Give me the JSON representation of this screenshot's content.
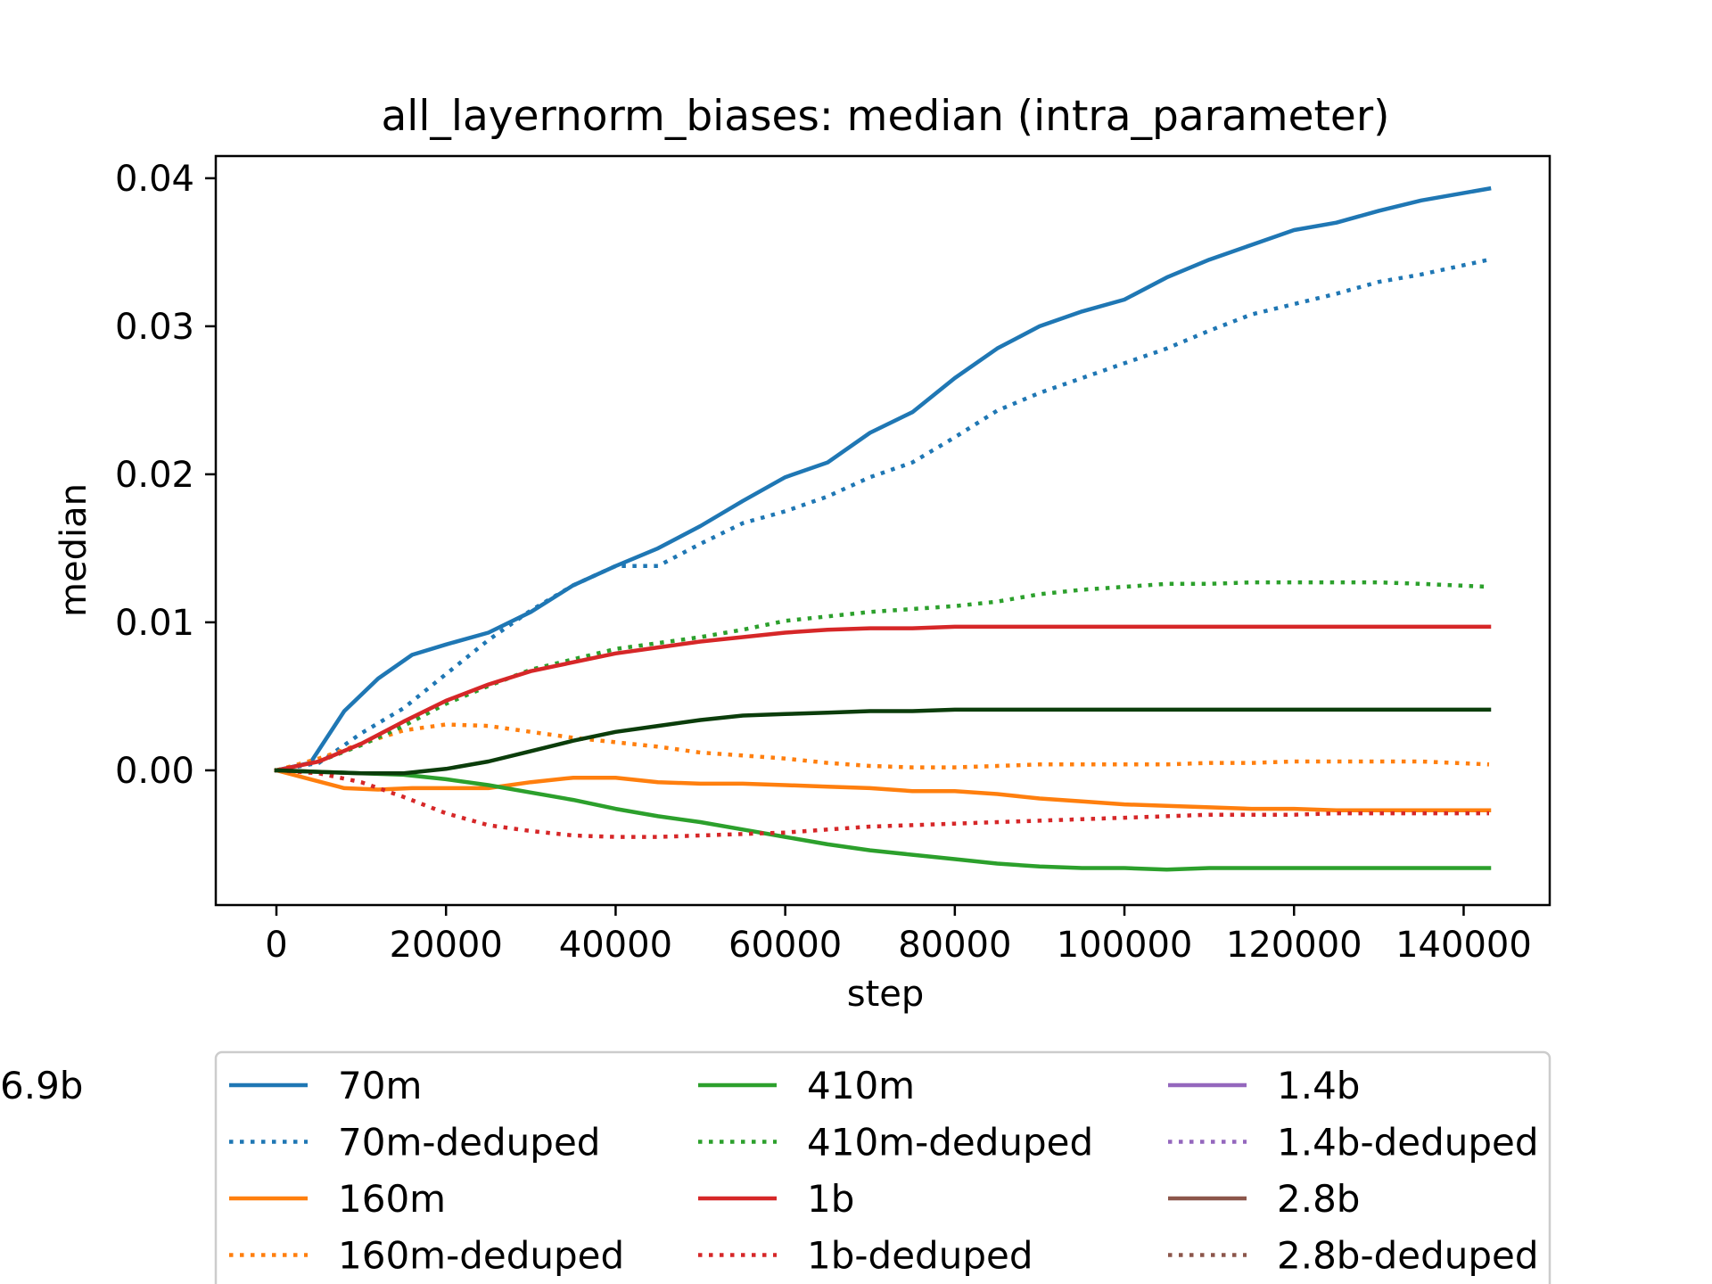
{
  "chart_data": {
    "type": "line",
    "title": "all_layernorm_biases: median (intra_parameter)",
    "xlabel": "step",
    "ylabel": "median",
    "xlim": [
      -7150,
      150150
    ],
    "ylim": [
      -0.0091,
      0.0415
    ],
    "xticks": [
      0,
      20000,
      40000,
      60000,
      80000,
      100000,
      120000,
      140000
    ],
    "xtick_labels": [
      "0",
      "20000",
      "40000",
      "60000",
      "80000",
      "100000",
      "120000",
      "140000"
    ],
    "yticks": [
      0.0,
      0.01,
      0.02,
      0.03,
      0.04
    ],
    "ytick_labels": [
      "0.00",
      "0.01",
      "0.02",
      "0.03",
      "0.04"
    ],
    "grid": false,
    "legend_position": "below-plot",
    "series": [
      {
        "name": "70m",
        "color": "#1f77b4",
        "style": "solid",
        "x": [
          0,
          4000,
          8000,
          12000,
          16000,
          20000,
          25000,
          30000,
          35000,
          40000,
          45000,
          50000,
          55000,
          60000,
          65000,
          70000,
          75000,
          80000,
          85000,
          90000,
          95000,
          100000,
          105000,
          110000,
          115000,
          120000,
          125000,
          130000,
          135000,
          143000
        ],
        "y": [
          0.0,
          0.0005,
          0.004,
          0.0062,
          0.0078,
          0.0085,
          0.0093,
          0.0107,
          0.0125,
          0.0138,
          0.015,
          0.0165,
          0.0182,
          0.0198,
          0.0208,
          0.0228,
          0.0242,
          0.0265,
          0.0285,
          0.03,
          0.031,
          0.0318,
          0.0333,
          0.0345,
          0.0355,
          0.0365,
          0.037,
          0.0378,
          0.0385,
          0.0393
        ]
      },
      {
        "name": "70m-deduped",
        "color": "#1f77b4",
        "style": "dotted",
        "x": [
          0,
          5000,
          10000,
          15000,
          20000,
          25000,
          30000,
          35000,
          40000,
          45000,
          50000,
          55000,
          60000,
          65000,
          70000,
          75000,
          80000,
          85000,
          90000,
          95000,
          100000,
          105000,
          110000,
          115000,
          120000,
          125000,
          130000,
          135000,
          143000
        ],
        "y": [
          0.0,
          0.0005,
          0.0025,
          0.0042,
          0.0065,
          0.0088,
          0.0108,
          0.0125,
          0.0138,
          0.0138,
          0.0153,
          0.0167,
          0.0175,
          0.0185,
          0.0198,
          0.0208,
          0.0225,
          0.0243,
          0.0255,
          0.0265,
          0.0275,
          0.0285,
          0.0297,
          0.0308,
          0.0315,
          0.0322,
          0.033,
          0.0335,
          0.0345
        ]
      },
      {
        "name": "160m",
        "color": "#ff7f0e",
        "style": "solid",
        "x": [
          0,
          4000,
          8000,
          12000,
          16000,
          20000,
          25000,
          30000,
          35000,
          40000,
          45000,
          50000,
          55000,
          60000,
          65000,
          70000,
          75000,
          80000,
          85000,
          90000,
          95000,
          100000,
          105000,
          110000,
          115000,
          120000,
          125000,
          130000,
          135000,
          143000
        ],
        "y": [
          0.0,
          -0.0006,
          -0.0012,
          -0.0013,
          -0.0012,
          -0.0012,
          -0.0012,
          -0.0008,
          -0.0005,
          -0.0005,
          -0.0008,
          -0.0009,
          -0.0009,
          -0.001,
          -0.0011,
          -0.0012,
          -0.0014,
          -0.0014,
          -0.0016,
          -0.0019,
          -0.0021,
          -0.0023,
          -0.0024,
          -0.0025,
          -0.0026,
          -0.0026,
          -0.0027,
          -0.0027,
          -0.0027,
          -0.0027
        ]
      },
      {
        "name": "160m-deduped",
        "color": "#ff7f0e",
        "style": "dotted",
        "x": [
          0,
          5000,
          10000,
          15000,
          20000,
          25000,
          30000,
          35000,
          40000,
          45000,
          50000,
          55000,
          60000,
          65000,
          70000,
          75000,
          80000,
          85000,
          90000,
          95000,
          100000,
          105000,
          110000,
          115000,
          120000,
          125000,
          130000,
          135000,
          143000
        ],
        "y": [
          0.0,
          0.0008,
          0.0018,
          0.0027,
          0.0031,
          0.003,
          0.0026,
          0.0022,
          0.0019,
          0.0016,
          0.0012,
          0.001,
          0.0008,
          0.0005,
          0.0003,
          0.0002,
          0.0002,
          0.0003,
          0.0004,
          0.0004,
          0.0004,
          0.0004,
          0.0005,
          0.0005,
          0.0006,
          0.0006,
          0.0006,
          0.0006,
          0.0004
        ]
      },
      {
        "name": "410m",
        "color": "#2ca02c",
        "style": "solid",
        "x": [
          0,
          5000,
          10000,
          15000,
          20000,
          25000,
          30000,
          35000,
          40000,
          45000,
          50000,
          55000,
          60000,
          65000,
          70000,
          75000,
          80000,
          85000,
          90000,
          95000,
          100000,
          105000,
          110000,
          115000,
          120000,
          125000,
          130000,
          135000,
          143000
        ],
        "y": [
          0.0,
          -0.0001,
          -0.0002,
          -0.0003,
          -0.0006,
          -0.001,
          -0.0015,
          -0.002,
          -0.0026,
          -0.0031,
          -0.0035,
          -0.004,
          -0.0045,
          -0.005,
          -0.0054,
          -0.0057,
          -0.006,
          -0.0063,
          -0.0065,
          -0.0066,
          -0.0066,
          -0.0067,
          -0.0066,
          -0.0066,
          -0.0066,
          -0.0066,
          -0.0066,
          -0.0066,
          -0.0066
        ]
      },
      {
        "name": "410m-deduped",
        "color": "#2ca02c",
        "style": "dotted",
        "x": [
          0,
          5000,
          10000,
          15000,
          20000,
          25000,
          30000,
          35000,
          40000,
          45000,
          50000,
          55000,
          60000,
          65000,
          70000,
          75000,
          80000,
          85000,
          90000,
          95000,
          100000,
          105000,
          110000,
          115000,
          120000,
          125000,
          130000,
          135000,
          143000
        ],
        "y": [
          0.0,
          0.0006,
          0.0017,
          0.003,
          0.0045,
          0.0057,
          0.0068,
          0.0075,
          0.0082,
          0.0086,
          0.009,
          0.0095,
          0.0101,
          0.0104,
          0.0107,
          0.0109,
          0.0111,
          0.0114,
          0.0119,
          0.0122,
          0.0124,
          0.0126,
          0.0126,
          0.0127,
          0.0127,
          0.0127,
          0.0127,
          0.0126,
          0.0124
        ]
      },
      {
        "name": "1b",
        "color": "#d62728",
        "style": "solid",
        "x": [
          0,
          5000,
          10000,
          15000,
          20000,
          25000,
          30000,
          35000,
          40000,
          45000,
          50000,
          55000,
          60000,
          65000,
          70000,
          75000,
          80000,
          85000,
          90000,
          95000,
          100000,
          105000,
          110000,
          115000,
          120000,
          125000,
          130000,
          135000,
          143000
        ],
        "y": [
          0.0,
          0.0006,
          0.0018,
          0.0033,
          0.0047,
          0.0058,
          0.0067,
          0.0073,
          0.0079,
          0.0083,
          0.0087,
          0.009,
          0.0093,
          0.0095,
          0.0096,
          0.0096,
          0.0097,
          0.0097,
          0.0097,
          0.0097,
          0.0097,
          0.0097,
          0.0097,
          0.0097,
          0.0097,
          0.0097,
          0.0097,
          0.0097,
          0.0097
        ]
      },
      {
        "name": "1b-deduped",
        "color": "#d62728",
        "style": "dotted",
        "x": [
          0,
          5000,
          10000,
          15000,
          20000,
          25000,
          30000,
          35000,
          40000,
          45000,
          50000,
          55000,
          60000,
          65000,
          70000,
          75000,
          80000,
          85000,
          90000,
          95000,
          100000,
          105000,
          110000,
          115000,
          120000,
          125000,
          130000,
          135000,
          143000
        ],
        "y": [
          0.0,
          -0.0002,
          -0.0008,
          -0.0018,
          -0.0029,
          -0.0037,
          -0.0041,
          -0.0044,
          -0.0045,
          -0.0045,
          -0.0044,
          -0.0043,
          -0.0042,
          -0.004,
          -0.0038,
          -0.0037,
          -0.0036,
          -0.0035,
          -0.0034,
          -0.0033,
          -0.0032,
          -0.0031,
          -0.003,
          -0.003,
          -0.003,
          -0.0029,
          -0.0029,
          -0.0029,
          -0.0029
        ]
      },
      {
        "name": "1.4b",
        "color": "#9467bd",
        "style": "solid",
        "x": [],
        "y": []
      },
      {
        "name": "1.4b-deduped",
        "color": "#9467bd",
        "style": "dotted",
        "x": [],
        "y": []
      },
      {
        "name": "2.8b",
        "color": "#8c564b",
        "style": "solid",
        "x": [],
        "y": []
      },
      {
        "name": "2.8b-deduped",
        "color": "#8c564b",
        "style": "dotted",
        "x": [],
        "y": []
      },
      {
        "name": "6.9b",
        "color": "#0b3d0b",
        "style": "solid",
        "x": [
          0,
          5000,
          10000,
          15000,
          20000,
          25000,
          30000,
          35000,
          40000,
          45000,
          50000,
          55000,
          60000,
          65000,
          70000,
          75000,
          80000,
          85000,
          90000,
          95000,
          100000,
          105000,
          110000,
          115000,
          120000,
          125000,
          130000,
          135000,
          143000
        ],
        "y": [
          0.0,
          -0.0001,
          -0.0002,
          -0.0002,
          0.0001,
          0.0006,
          0.0013,
          0.002,
          0.0026,
          0.003,
          0.0034,
          0.0037,
          0.0038,
          0.0039,
          0.004,
          0.004,
          0.0041,
          0.0041,
          0.0041,
          0.0041,
          0.0041,
          0.0041,
          0.0041,
          0.0041,
          0.0041,
          0.0041,
          0.0041,
          0.0041,
          0.0041
        ]
      }
    ]
  }
}
